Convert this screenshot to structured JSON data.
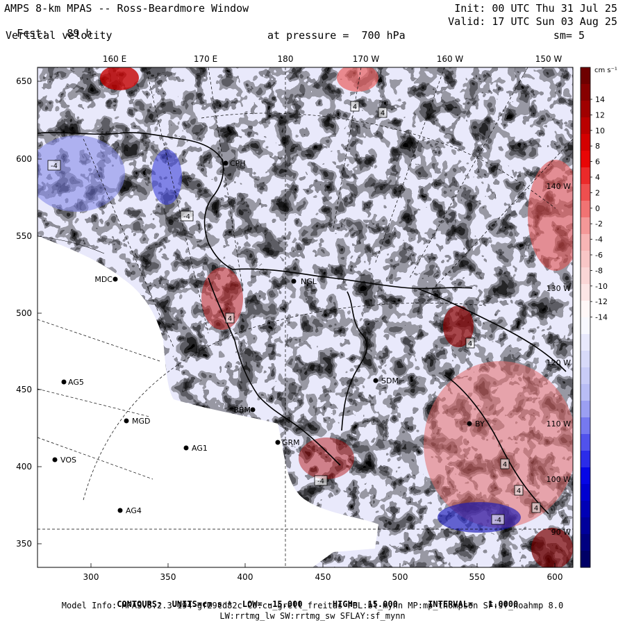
{
  "header": {
    "line1_left": "AMPS 8-km MPAS -- Ross-Beardmore Window",
    "line2_left_label": "Fcst:",
    "line2_left_value": "89 h",
    "line3_left": "Vertical velocity",
    "line1_right": "Init: 00 UTC Thu 31 Jul 25",
    "line2_right": "Valid: 17 UTC Sun 03 Aug 25",
    "pressure_label": "at pressure =  700 hPa",
    "smooth_label": "sm= 5"
  },
  "top_axis_labels": [
    "160 E",
    "170 E",
    "180",
    "170 W",
    "160 W",
    "150 W"
  ],
  "right_meridian_labels": [
    "140 W",
    "130 W",
    "120 W",
    "110 W",
    "100 W",
    "90 W"
  ],
  "left_axis_ticks": [
    "650",
    "600",
    "550",
    "500",
    "450",
    "400",
    "350"
  ],
  "bottom_axis_ticks": [
    "300",
    "350",
    "400",
    "450",
    "500",
    "550",
    "600"
  ],
  "colorbar": {
    "unit_label": "cm s⁻¹",
    "ticks": [
      "14",
      "12",
      "10",
      "8",
      "6",
      "4",
      "2",
      "0",
      "-2",
      "-4",
      "-6",
      "-8",
      "-10",
      "-12",
      "-14"
    ],
    "colors": {
      "deep_red": "#6e0000",
      "red": "#e80000",
      "light_red": "#f6b0b0",
      "white": "#ffffff",
      "light_blue": "#b4b8f4",
      "blue": "#0000e6",
      "deep_blue": "#000066"
    }
  },
  "stations": [
    {
      "name": "MDC"
    },
    {
      "name": "NGL"
    },
    {
      "name": "AG5"
    },
    {
      "name": "MGD"
    },
    {
      "name": "AG1"
    },
    {
      "name": "VOS"
    },
    {
      "name": "AG4"
    },
    {
      "name": "BBM"
    },
    {
      "name": "GRM"
    },
    {
      "name": "SDM"
    },
    {
      "name": "BY"
    },
    {
      "name": "CPH"
    }
  ],
  "contour_labels": [
    "4",
    "4",
    "-4",
    "-4",
    "4",
    "4",
    "-4",
    "4",
    "4",
    "-4",
    "4"
  ],
  "footer": {
    "contours_label": "CONTOURS:",
    "units_label": "UNITS=cm s⁻¹",
    "low": "LOW= -15.000",
    "high": "HIGH=  15.000",
    "interval": "INTERVAL=   1.0000",
    "model_info": "Model Info: MPASv8.2.3-194-gf29cd82c CU:cu_grell_freitas PBL:bl_mynn MP:mp_thompson SF:sf_noahmp 8.0",
    "model_info_2": "LW:rrtmg_lw SW:rrtmg_sw SFLAY:sf_mynn"
  }
}
